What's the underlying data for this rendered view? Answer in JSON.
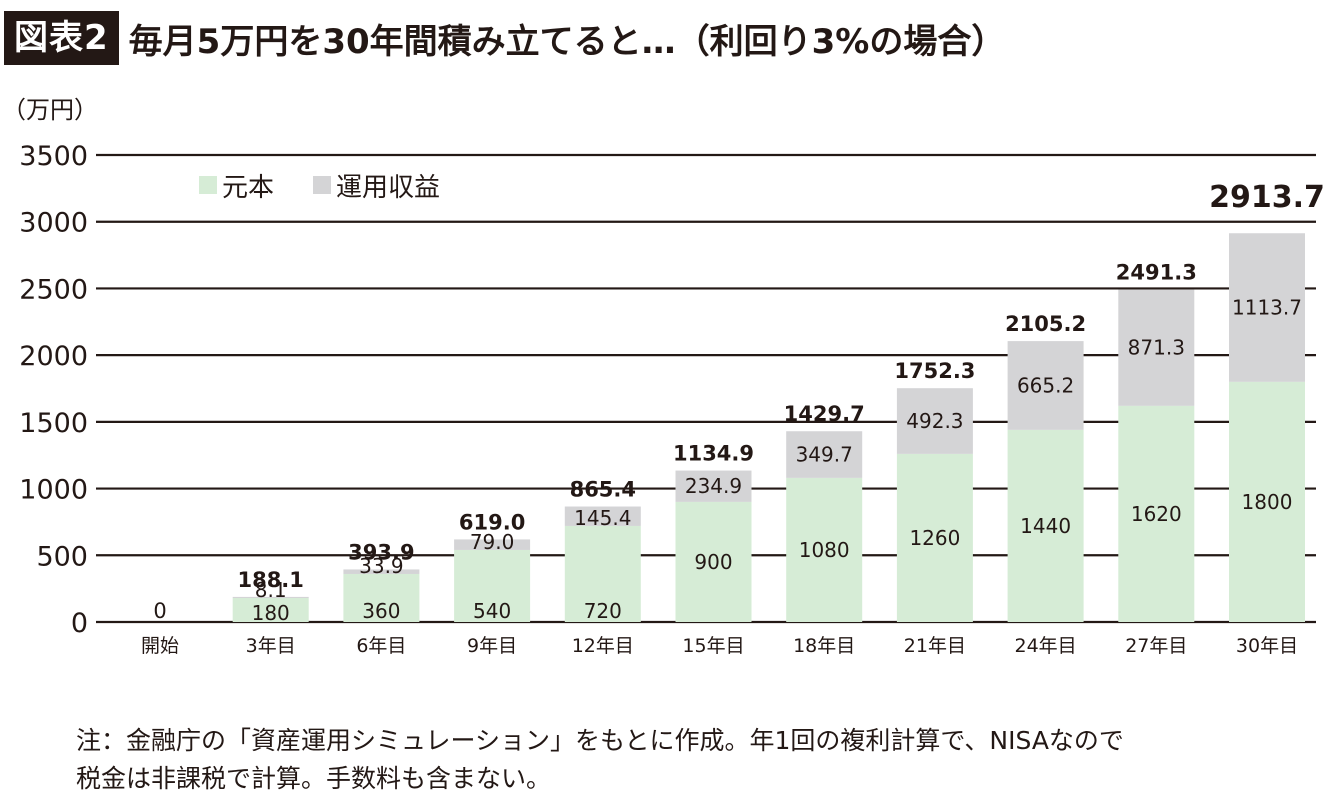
{
  "header": {
    "badge": "図表2",
    "title": "毎月5万円を30年間積み立てると…（利回り3%の場合）"
  },
  "note": {
    "line1": "注：金融庁の「資産運用シミュレーション」をもとに作成。年1回の複利計算で、NISAなので",
    "line2": "税金は非課税で計算。手数料も含まない。"
  },
  "colors": {
    "principal": "#d6ecd6",
    "gain": "#d4d4d6",
    "grid": "#231815",
    "text": "#231815"
  },
  "chart_data": {
    "type": "bar",
    "stacked": true,
    "ylabel": "（万円）",
    "ylim": [
      0,
      3500
    ],
    "yticks": [
      0,
      500,
      1000,
      1500,
      2000,
      2500,
      3000,
      3500
    ],
    "grid": true,
    "legend_position": "top-left",
    "categories": [
      "開始",
      "3年目",
      "6年目",
      "9年目",
      "12年目",
      "15年目",
      "18年目",
      "21年目",
      "24年目",
      "27年目",
      "30年目"
    ],
    "series": [
      {
        "name": "元本",
        "values": [
          0,
          180,
          360,
          540,
          720,
          900,
          1080,
          1260,
          1440,
          1620,
          1800
        ],
        "labels": [
          "",
          "180",
          "360",
          "540",
          "720",
          "900",
          "1080",
          "1260",
          "1440",
          "1620",
          "1800"
        ]
      },
      {
        "name": "運用収益",
        "values": [
          0,
          8.1,
          33.9,
          79.0,
          145.4,
          234.9,
          349.7,
          492.3,
          665.2,
          871.3,
          1113.7
        ],
        "labels": [
          "",
          "8.1",
          "33.9",
          "79.0",
          "145.4",
          "234.9",
          "349.7",
          "492.3",
          "665.2",
          "871.3",
          "1113.7"
        ]
      }
    ],
    "totals": [
      "0",
      "188.1",
      "393.9",
      "619.0",
      "865.4",
      "1134.9",
      "1429.7",
      "1752.3",
      "2105.2",
      "2491.3",
      "2913.7"
    ]
  }
}
